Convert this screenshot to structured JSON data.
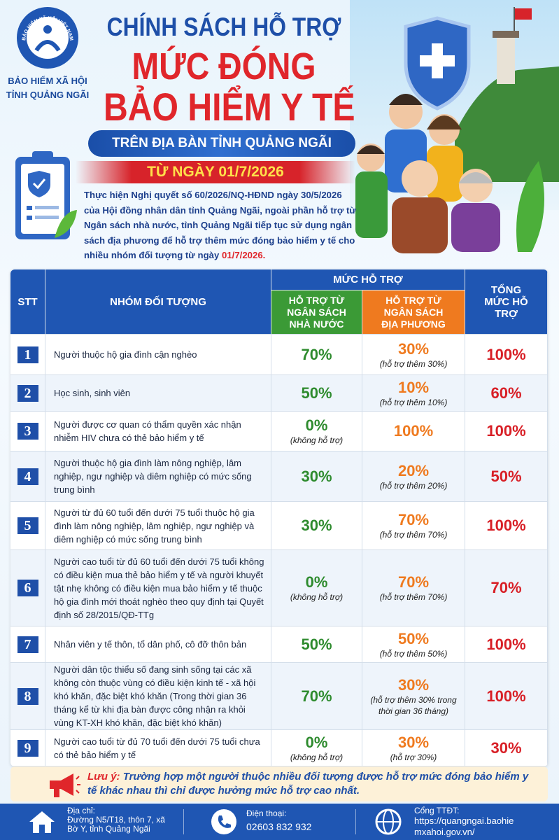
{
  "header": {
    "logo_arc": "BẢO HIỂM XÃ HỘI VIỆT NAM",
    "org_line1": "BẢO HIỂM XÃ HỘI",
    "org_line2": "TỈNH QUẢNG NGÃI",
    "title_line1": "CHÍNH SÁCH HỖ TRỢ",
    "title_line2": "MỨC ĐÓNG",
    "title_line3": "BẢO HIỂM Y TẾ",
    "subtitle": "TRÊN ĐỊA BÀN TỈNH QUẢNG NGÃI",
    "date_banner": "TỪ NGÀY 01/7/2026"
  },
  "intro": {
    "text": "Thực hiện Nghị quyết số 60/2026/NQ-HĐND ngày 30/5/2026 của Hội đồng nhân dân tỉnh Quảng Ngãi, ngoài phần hỗ trợ từ Ngân sách nhà nước, tỉnh Quảng Ngãi tiếp tục sử dụng ngân sách địa phương để hỗ trợ thêm mức đóng bảo hiểm y tế cho nhiều nhóm đối tượng từ ngày",
    "date": "01/7/2026."
  },
  "table": {
    "headers": {
      "stt": "STT",
      "group": "NHÓM ĐỐI TƯỢNG",
      "support": "MỨC HỖ TRỢ",
      "national": "HỖ TRỢ TỪ NGÂN SÁCH NHÀ NƯỚC",
      "local": "HỖ TRỢ TỪ NGÂN SÁCH ĐỊA PHƯƠNG",
      "total": "TỔNG MỨC HỖ TRỢ"
    },
    "rows": [
      {
        "stt": "1",
        "group": "Người thuộc hộ gia đình cận nghèo",
        "national": "70%",
        "local": "30%",
        "local_note": "(hỗ trợ thêm 30%)",
        "total": "100%"
      },
      {
        "stt": "2",
        "group": "Học sinh, sinh viên",
        "national": "50%",
        "local": "10%",
        "local_note": "(hỗ trợ thêm 10%)",
        "total": "60%"
      },
      {
        "stt": "3",
        "group": "Người được cơ quan có thẩm quyền xác nhận nhiễm HIV chưa có thẻ bảo hiểm y tế",
        "national": "0%",
        "national_note": "(không hỗ trợ)",
        "local": "100%",
        "total": "100%"
      },
      {
        "stt": "4",
        "group": "Người thuộc hộ gia đình làm nông nghiệp, lâm nghiệp, ngư nghiệp và diêm nghiệp có mức sống trung bình",
        "national": "30%",
        "local": "20%",
        "local_note": "(hỗ trợ thêm 20%)",
        "total": "50%"
      },
      {
        "stt": "5",
        "group": "Người từ đủ 60 tuổi đến dưới 75 tuổi thuộc hộ gia đình làm nông nghiệp, lâm nghiệp, ngư nghiệp và diêm nghiệp có mức sống trung bình",
        "national": "30%",
        "local": "70%",
        "local_note": "(hỗ trợ thêm 70%)",
        "total": "100%"
      },
      {
        "stt": "6",
        "group": "Người cao tuổi từ đủ 60 tuổi đến dưới 75 tuổi không có điều kiện mua thẻ bảo hiểm y tế và người khuyết tật nhẹ không có điều kiện mua bảo hiểm y tế thuộc hộ gia đình mới thoát nghèo theo quy định tại Quyết định số 28/2015/QĐ-TTg",
        "national": "0%",
        "national_note": "(không hỗ trợ)",
        "local": "70%",
        "local_note": "(hỗ trợ thêm 70%)",
        "total": "70%"
      },
      {
        "stt": "7",
        "group": "Nhân viên y tế thôn, tổ dân phố, cô đỡ thôn bản",
        "national": "50%",
        "local": "50%",
        "local_note": "(hỗ trợ thêm 50%)",
        "total": "100%"
      },
      {
        "stt": "8",
        "group": "Người dân tộc thiểu số đang sinh sống tại các xã không còn thuộc vùng có điều kiện kinh tế - xã hội khó khăn, đặc biệt khó khăn (Trong thời gian 36 tháng kể từ khi địa bàn được công nhận ra khỏi vùng KT-XH khó khăn, đặc biệt khó khăn)",
        "national": "70%",
        "local": "30%",
        "local_note": "(hỗ trợ thêm 30% trong thời gian 36 tháng)",
        "total": "100%"
      },
      {
        "stt": "9",
        "group": "Người cao tuổi từ đủ 70 tuổi đến dưới 75 tuổi chưa có thẻ bảo hiểm y tế",
        "national": "0%",
        "national_note": "(không hỗ trợ)",
        "local": "30%",
        "local_note": "(hỗ trợ 30%)",
        "total": "30%"
      }
    ]
  },
  "note": {
    "label": "Lưu ý:",
    "text": "Trường hợp một người thuộc nhiều đối tượng được hỗ trợ mức đóng bảo hiểm y tế khác nhau thì chỉ được hưởng mức hỗ trợ cao nhất."
  },
  "footer": {
    "address_label": "Địa chỉ:",
    "address": "Đường N5/T18, thôn 7, xã Bờ Y, tỉnh Quảng Ngãi",
    "phone_label": "Điện thoại:",
    "phone": "02603 832 932",
    "web_label": "Cổng TTĐT:",
    "web": "https://quangngai.baohiemxahoi.gov.vn/"
  }
}
